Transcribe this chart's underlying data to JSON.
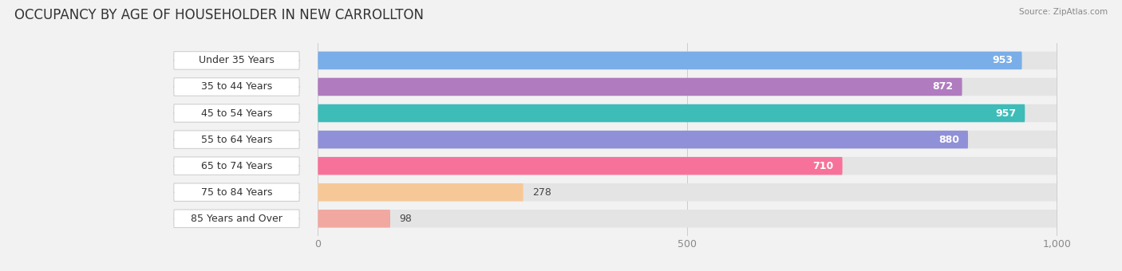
{
  "title": "OCCUPANCY BY AGE OF HOUSEHOLDER IN NEW CARROLLTON",
  "source": "Source: ZipAtlas.com",
  "categories": [
    "Under 35 Years",
    "35 to 44 Years",
    "45 to 54 Years",
    "55 to 64 Years",
    "65 to 74 Years",
    "75 to 84 Years",
    "85 Years and Over"
  ],
  "values": [
    953,
    872,
    957,
    880,
    710,
    278,
    98
  ],
  "bar_colors": [
    "#7aaee8",
    "#b07bbf",
    "#3dbcb8",
    "#9090d8",
    "#f7729a",
    "#f7c897",
    "#f0a8a0"
  ],
  "max_val": 1000,
  "xticks": [
    0,
    500,
    1000
  ],
  "xticklabels": [
    "0",
    "500",
    "1,000"
  ],
  "background_color": "#f2f2f2",
  "bar_bg_color": "#e4e4e4",
  "label_bg_color": "#ffffff",
  "title_fontsize": 12,
  "tick_fontsize": 9,
  "value_fontsize": 9,
  "label_fontsize": 9
}
